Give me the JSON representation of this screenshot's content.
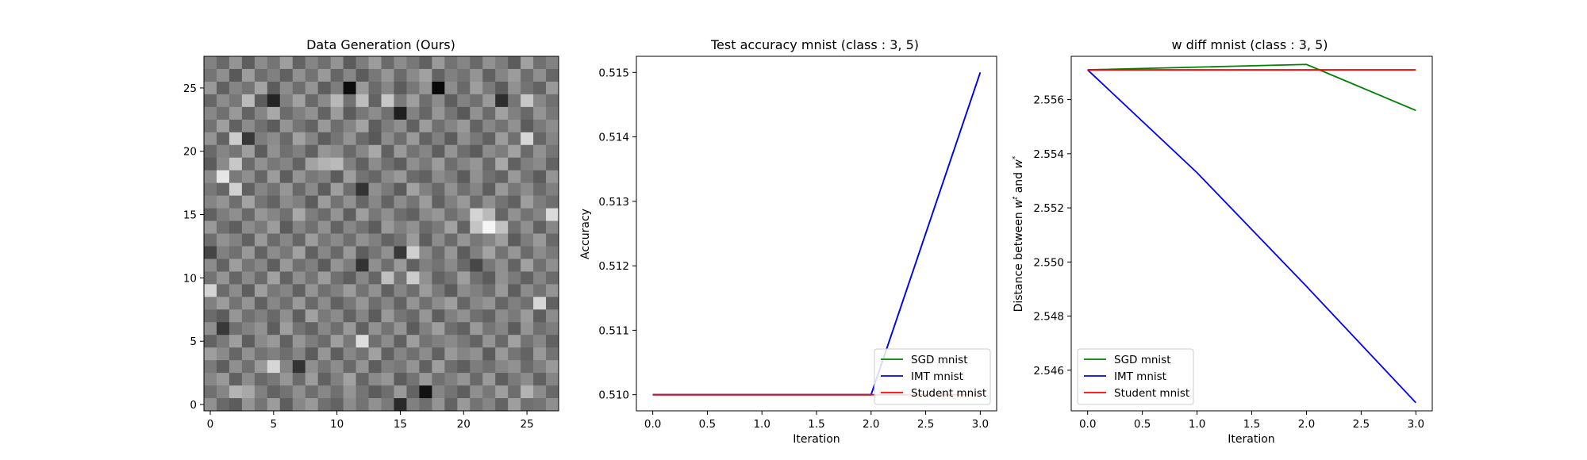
{
  "chart_data": [
    {
      "type": "heatmap",
      "title": "Data Generation (Ours)",
      "colormap": "gray",
      "xlim": [
        -0.5,
        27.5
      ],
      "ylim": [
        27.5,
        -0.5
      ],
      "xticks": [
        0,
        5,
        10,
        15,
        20,
        25
      ],
      "yticks": [
        0,
        5,
        10,
        15,
        20,
        25
      ],
      "rows": 28,
      "cols": 28,
      "values": [
        [
          0.51,
          0.41,
          0.58,
          0.37,
          0.55,
          0.46,
          0.62,
          0.39,
          0.52,
          0.44,
          0.58,
          0.36,
          0.49,
          0.61,
          0.42,
          0.55,
          0.47,
          0.38,
          0.6,
          0.45,
          0.52,
          0.41,
          0.57,
          0.49,
          0.36,
          0.63,
          0.44,
          0.51
        ],
        [
          0.46,
          0.56,
          0.35,
          0.61,
          0.43,
          0.5,
          0.38,
          0.57,
          0.45,
          0.6,
          0.4,
          0.53,
          0.36,
          0.47,
          0.59,
          0.42,
          0.54,
          0.63,
          0.39,
          0.5,
          0.45,
          0.58,
          0.38,
          0.52,
          0.61,
          0.43,
          0.56,
          0.4
        ],
        [
          0.6,
          0.38,
          0.52,
          0.46,
          0.64,
          0.36,
          0.55,
          0.43,
          0.58,
          0.37,
          0.49,
          0.05,
          0.6,
          0.42,
          0.53,
          0.36,
          0.47,
          0.58,
          0.03,
          0.55,
          0.41,
          0.62,
          0.48,
          0.36,
          0.57,
          0.45,
          0.39,
          0.6
        ],
        [
          0.4,
          0.55,
          0.47,
          0.73,
          0.36,
          0.14,
          0.5,
          0.63,
          0.41,
          0.54,
          0.72,
          0.45,
          0.74,
          0.39,
          0.78,
          0.48,
          0.62,
          0.43,
          0.55,
          0.37,
          0.51,
          0.44,
          0.6,
          0.18,
          0.46,
          0.78,
          0.53,
          0.44
        ],
        [
          0.53,
          0.44,
          0.6,
          0.39,
          0.52,
          0.66,
          0.42,
          0.5,
          0.57,
          0.39,
          0.61,
          0.36,
          0.47,
          0.55,
          0.44,
          0.12,
          0.51,
          0.4,
          0.59,
          0.46,
          0.35,
          0.57,
          0.42,
          0.63,
          0.5,
          0.41,
          0.58,
          0.47
        ],
        [
          0.45,
          0.62,
          0.38,
          0.55,
          0.44,
          0.36,
          0.58,
          0.46,
          0.39,
          0.6,
          0.43,
          0.52,
          0.64,
          0.37,
          0.49,
          0.56,
          0.38,
          0.61,
          0.44,
          0.52,
          0.6,
          0.39,
          0.53,
          0.45,
          0.57,
          0.36,
          0.48,
          0.55
        ],
        [
          0.58,
          0.39,
          0.8,
          0.22,
          0.49,
          0.55,
          0.41,
          0.63,
          0.52,
          0.37,
          0.46,
          0.58,
          0.42,
          0.35,
          0.55,
          0.43,
          0.6,
          0.39,
          0.5,
          0.36,
          0.56,
          0.47,
          0.38,
          0.61,
          0.44,
          0.84,
          0.4,
          0.52
        ],
        [
          0.41,
          0.52,
          0.46,
          0.62,
          0.36,
          0.57,
          0.44,
          0.5,
          0.38,
          0.59,
          0.55,
          0.41,
          0.53,
          0.66,
          0.38,
          0.6,
          0.45,
          0.52,
          0.37,
          0.58,
          0.43,
          0.36,
          0.55,
          0.49,
          0.63,
          0.42,
          0.57,
          0.46
        ],
        [
          0.36,
          0.54,
          0.78,
          0.42,
          0.57,
          0.47,
          0.52,
          0.39,
          0.64,
          0.7,
          0.73,
          0.5,
          0.38,
          0.55,
          0.44,
          0.37,
          0.56,
          0.48,
          0.61,
          0.43,
          0.52,
          0.59,
          0.41,
          0.66,
          0.38,
          0.5,
          0.54,
          0.39
        ],
        [
          0.55,
          0.9,
          0.48,
          0.56,
          0.4,
          0.61,
          0.37,
          0.58,
          0.47,
          0.51,
          0.36,
          0.62,
          0.45,
          0.4,
          0.54,
          0.6,
          0.42,
          0.38,
          0.55,
          0.49,
          0.36,
          0.57,
          0.44,
          0.39,
          0.6,
          0.46,
          0.36,
          0.58
        ],
        [
          0.47,
          0.4,
          0.82,
          0.38,
          0.52,
          0.45,
          0.59,
          0.41,
          0.54,
          0.37,
          0.62,
          0.43,
          0.2,
          0.56,
          0.48,
          0.36,
          0.63,
          0.5,
          0.41,
          0.57,
          0.44,
          0.52,
          0.37,
          0.6,
          0.47,
          0.55,
          0.42,
          0.5
        ],
        [
          0.52,
          0.58,
          0.43,
          0.64,
          0.46,
          0.39,
          0.55,
          0.5,
          0.36,
          0.61,
          0.45,
          0.57,
          0.4,
          0.53,
          0.39,
          0.55,
          0.46,
          0.61,
          0.38,
          0.5,
          0.6,
          0.42,
          0.56,
          0.45,
          0.38,
          0.62,
          0.49,
          0.43
        ],
        [
          0.38,
          0.49,
          0.56,
          0.41,
          0.59,
          0.52,
          0.44,
          0.66,
          0.49,
          0.42,
          0.58,
          0.37,
          0.62,
          0.47,
          0.56,
          0.43,
          0.38,
          0.54,
          0.59,
          0.44,
          0.52,
          0.83,
          0.73,
          0.4,
          0.57,
          0.45,
          0.52,
          0.86
        ],
        [
          0.6,
          0.44,
          0.37,
          0.55,
          0.48,
          0.61,
          0.36,
          0.52,
          0.44,
          0.57,
          0.39,
          0.53,
          0.45,
          0.36,
          0.6,
          0.5,
          0.57,
          0.42,
          0.48,
          0.63,
          0.39,
          0.77,
          0.96,
          0.76,
          0.44,
          0.56,
          0.38,
          0.53
        ],
        [
          0.43,
          0.57,
          0.51,
          0.38,
          0.6,
          0.42,
          0.53,
          0.4,
          0.61,
          0.47,
          0.54,
          0.43,
          0.57,
          0.5,
          0.39,
          0.45,
          0.61,
          0.37,
          0.55,
          0.42,
          0.58,
          0.47,
          0.52,
          0.62,
          0.36,
          0.49,
          0.6,
          0.41
        ],
        [
          0.27,
          0.5,
          0.44,
          0.6,
          0.39,
          0.55,
          0.47,
          0.63,
          0.38,
          0.53,
          0.41,
          0.6,
          0.37,
          0.46,
          0.57,
          0.22,
          0.81,
          0.55,
          0.42,
          0.59,
          0.36,
          0.5,
          0.64,
          0.45,
          0.59,
          0.42,
          0.55,
          0.48
        ],
        [
          0.55,
          0.39,
          0.62,
          0.46,
          0.53,
          0.37,
          0.6,
          0.44,
          0.5,
          0.36,
          0.58,
          0.49,
          0.2,
          0.56,
          0.43,
          0.6,
          0.38,
          0.5,
          0.45,
          0.54,
          0.41,
          0.28,
          0.47,
          0.56,
          0.39,
          0.63,
          0.44,
          0.56
        ],
        [
          0.45,
          0.58,
          0.4,
          0.54,
          0.42,
          0.63,
          0.39,
          0.56,
          0.46,
          0.61,
          0.44,
          0.37,
          0.53,
          0.4,
          0.75,
          0.46,
          0.8,
          0.57,
          0.39,
          0.45,
          0.62,
          0.44,
          0.36,
          0.57,
          0.48,
          0.38,
          0.52,
          0.42
        ],
        [
          0.83,
          0.42,
          0.55,
          0.37,
          0.62,
          0.47,
          0.52,
          0.38,
          0.58,
          0.44,
          0.5,
          0.61,
          0.45,
          0.57,
          0.38,
          0.52,
          0.43,
          0.61,
          0.48,
          0.36,
          0.55,
          0.5,
          0.43,
          0.6,
          0.37,
          0.55,
          0.45,
          0.58
        ],
        [
          0.5,
          0.61,
          0.45,
          0.58,
          0.38,
          0.53,
          0.44,
          0.6,
          0.41,
          0.55,
          0.38,
          0.47,
          0.59,
          0.43,
          0.52,
          0.39,
          0.58,
          0.44,
          0.55,
          0.62,
          0.4,
          0.53,
          0.58,
          0.4,
          0.5,
          0.44,
          0.84,
          0.38
        ],
        [
          0.42,
          0.36,
          0.59,
          0.44,
          0.5,
          0.41,
          0.56,
          0.37,
          0.63,
          0.48,
          0.55,
          0.39,
          0.52,
          0.36,
          0.6,
          0.46,
          0.41,
          0.59,
          0.37,
          0.5,
          0.57,
          0.44,
          0.39,
          0.55,
          0.48,
          0.61,
          0.37,
          0.55
        ],
        [
          0.56,
          0.22,
          0.44,
          0.51,
          0.57,
          0.37,
          0.62,
          0.45,
          0.39,
          0.53,
          0.43,
          0.6,
          0.38,
          0.57,
          0.45,
          0.58,
          0.36,
          0.5,
          0.62,
          0.43,
          0.38,
          0.6,
          0.46,
          0.52,
          0.36,
          0.58,
          0.44,
          0.49
        ],
        [
          0.39,
          0.48,
          0.62,
          0.37,
          0.54,
          0.6,
          0.38,
          0.59,
          0.49,
          0.42,
          0.62,
          0.47,
          0.87,
          0.44,
          0.55,
          0.38,
          0.62,
          0.45,
          0.5,
          0.54,
          0.47,
          0.39,
          0.58,
          0.41,
          0.63,
          0.45,
          0.53,
          0.38
        ],
        [
          0.62,
          0.54,
          0.4,
          0.57,
          0.45,
          0.5,
          0.43,
          0.52,
          0.36,
          0.59,
          0.37,
          0.53,
          0.45,
          0.63,
          0.38,
          0.52,
          0.44,
          0.55,
          0.38,
          0.6,
          0.52,
          0.57,
          0.36,
          0.6,
          0.46,
          0.39,
          0.6,
          0.45
        ],
        [
          0.48,
          0.37,
          0.56,
          0.44,
          0.6,
          0.84,
          0.52,
          0.2,
          0.56,
          0.46,
          0.55,
          0.41,
          0.58,
          0.37,
          0.5,
          0.47,
          0.58,
          0.38,
          0.62,
          0.43,
          0.37,
          0.49,
          0.44,
          0.53,
          0.57,
          0.42,
          0.5,
          0.6
        ],
        [
          0.53,
          0.6,
          0.38,
          0.55,
          0.41,
          0.47,
          0.59,
          0.42,
          0.61,
          0.38,
          0.5,
          0.63,
          0.4,
          0.54,
          0.59,
          0.36,
          0.45,
          0.6,
          0.44,
          0.5,
          0.58,
          0.41,
          0.6,
          0.37,
          0.48,
          0.55,
          0.38,
          0.52
        ],
        [
          0.44,
          0.52,
          0.7,
          0.66,
          0.5,
          0.39,
          0.45,
          0.56,
          0.43,
          0.53,
          0.44,
          0.58,
          0.46,
          0.36,
          0.43,
          0.6,
          0.39,
          0.07,
          0.52,
          0.45,
          0.37,
          0.56,
          0.47,
          0.62,
          0.43,
          0.7,
          0.55,
          0.41
        ],
        [
          0.57,
          0.41,
          0.36,
          0.58,
          0.46,
          0.61,
          0.37,
          0.53,
          0.6,
          0.44,
          0.39,
          0.55,
          0.45,
          0.57,
          0.48,
          0.16,
          0.5,
          0.43,
          0.58,
          0.39,
          0.6,
          0.45,
          0.52,
          0.39,
          0.62,
          0.44,
          0.46,
          0.56
        ]
      ]
    },
    {
      "type": "line",
      "title": "Test accuracy mnist (class : 3, 5)",
      "xlabel": "Iteration",
      "ylabel": "Accuracy",
      "xlim": [
        -0.15,
        3.15
      ],
      "ylim": [
        0.50975,
        0.51525
      ],
      "xticks": [
        "0.0",
        "0.5",
        "1.0",
        "1.5",
        "2.0",
        "2.5",
        "3.0"
      ],
      "yticks": [
        "0.510",
        "0.511",
        "0.512",
        "0.513",
        "0.514",
        "0.515"
      ],
      "x": [
        0,
        1,
        2,
        3
      ],
      "series": [
        {
          "name": "SGD mnist",
          "color": "#008000",
          "values": [
            0.51,
            0.51,
            0.51,
            0.515
          ]
        },
        {
          "name": "IMT mnist",
          "color": "#0000ff",
          "values": [
            0.51,
            0.51,
            0.51,
            0.515
          ]
        },
        {
          "name": "Student mnist",
          "color": "#ff0000",
          "values": [
            0.51,
            0.51,
            0.51,
            0.51
          ]
        }
      ],
      "legend": "lower right"
    },
    {
      "type": "line",
      "title": "w diff mnist (class : 3, 5)",
      "xlabel": "Iteration",
      "ylabel": "Distance between w^t and w^*",
      "xlim": [
        -0.15,
        3.15
      ],
      "ylim": [
        2.5445,
        2.5576
      ],
      "xticks": [
        "0.0",
        "0.5",
        "1.0",
        "1.5",
        "2.0",
        "2.5",
        "3.0"
      ],
      "yticks": [
        "2.546",
        "2.548",
        "2.550",
        "2.552",
        "2.554",
        "2.556"
      ],
      "x": [
        0,
        1,
        2,
        3
      ],
      "series": [
        {
          "name": "SGD mnist",
          "color": "#008000",
          "values": [
            2.5571,
            2.5572,
            2.5573,
            2.5556
          ]
        },
        {
          "name": "IMT mnist",
          "color": "#0000ff",
          "values": [
            2.5571,
            2.5533,
            2.5491,
            2.5448
          ]
        },
        {
          "name": "Student mnist",
          "color": "#ff0000",
          "values": [
            2.5571,
            2.5571,
            2.5571,
            2.5571
          ]
        }
      ],
      "legend": "lower left"
    }
  ]
}
